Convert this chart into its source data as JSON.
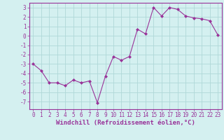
{
  "x": [
    0,
    1,
    2,
    3,
    4,
    5,
    6,
    7,
    8,
    9,
    10,
    11,
    12,
    13,
    14,
    15,
    16,
    17,
    18,
    19,
    20,
    21,
    22,
    23
  ],
  "y": [
    -3.0,
    -3.7,
    -5.0,
    -5.0,
    -5.3,
    -4.7,
    -5.0,
    -4.8,
    -7.1,
    -4.3,
    -2.2,
    -2.6,
    -2.2,
    0.7,
    0.2,
    3.0,
    2.1,
    3.0,
    2.8,
    2.1,
    1.9,
    1.8,
    1.6,
    0.1
  ],
  "line_color": "#993399",
  "marker_color": "#993399",
  "bg_color": "#d4f0f0",
  "grid_color": "#b0d8d8",
  "xlabel": "Windchill (Refroidissement éolien,°C)",
  "ylim": [
    -7.8,
    3.5
  ],
  "xlim": [
    -0.5,
    23.5
  ],
  "yticks": [
    -7,
    -6,
    -5,
    -4,
    -3,
    -2,
    -1,
    0,
    1,
    2,
    3
  ],
  "xticks": [
    0,
    1,
    2,
    3,
    4,
    5,
    6,
    7,
    8,
    9,
    10,
    11,
    12,
    13,
    14,
    15,
    16,
    17,
    18,
    19,
    20,
    21,
    22,
    23
  ],
  "tick_label_fontsize": 5.5,
  "xlabel_fontsize": 6.5,
  "label_color": "#993399",
  "spine_color": "#993399"
}
